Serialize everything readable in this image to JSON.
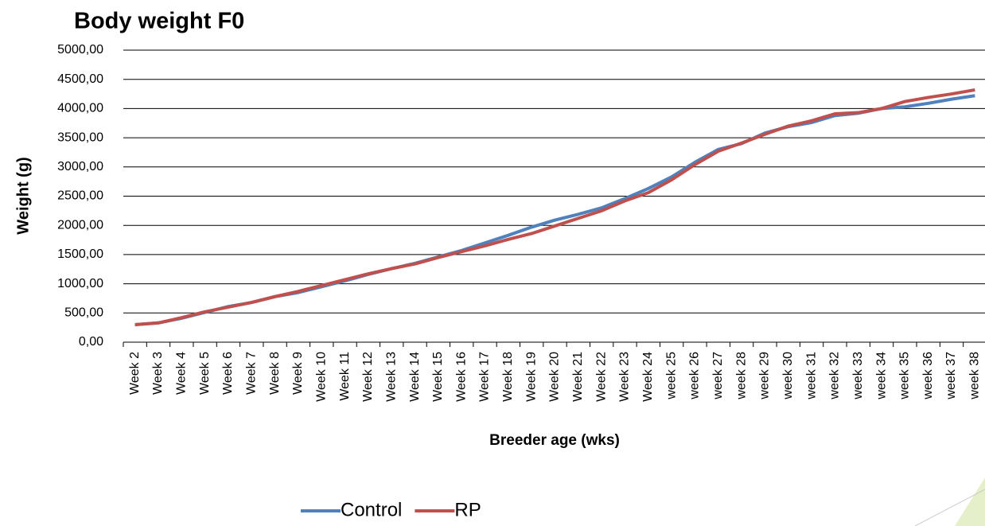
{
  "chart_data": {
    "type": "line",
    "title": "Body weight F0",
    "x_label": "Breeder age (wks)",
    "y_label": "Weight (g)",
    "categories": [
      "Week 2",
      "Week 3",
      "Week 4",
      "Week 5",
      "Week 6",
      "Week 7",
      "Week 8",
      "Week 9",
      "Week 10",
      "Week 11",
      "Week 12",
      "Week 13",
      "Week 14",
      "Week 15",
      "Week 16",
      "Week 17",
      "Week 18",
      "Week 19",
      "Week 20",
      "Week 21",
      "Week 22",
      "Week 23",
      "Week 24",
      "week 25",
      "week 26",
      "week 27",
      "week 28",
      "week 29",
      "week 30",
      "week 31",
      "week 32",
      "week 33",
      "week 34",
      "week 35",
      "week 36",
      "week 37",
      "week 38"
    ],
    "series": [
      {
        "name": "Control",
        "color": "#4f81bd",
        "values": [
          300,
          330,
          410,
          510,
          610,
          680,
          780,
          850,
          950,
          1050,
          1160,
          1260,
          1350,
          1460,
          1570,
          1700,
          1830,
          1970,
          2090,
          2190,
          2300,
          2460,
          2630,
          2830,
          3080,
          3300,
          3400,
          3580,
          3690,
          3760,
          3880,
          3920,
          4000,
          4030,
          4090,
          4160,
          4220
        ]
      },
      {
        "name": "RP",
        "color": "#c0504d",
        "values": [
          300,
          330,
          420,
          520,
          600,
          680,
          780,
          870,
          970,
          1070,
          1170,
          1260,
          1340,
          1450,
          1550,
          1650,
          1760,
          1860,
          1990,
          2120,
          2250,
          2420,
          2560,
          2780,
          3040,
          3270,
          3410,
          3560,
          3700,
          3790,
          3910,
          3930,
          4000,
          4120,
          4190,
          4250,
          4320
        ]
      }
    ],
    "ylim": [
      0,
      5000
    ],
    "yticks": [
      {
        "value": 0,
        "label": "0,00"
      },
      {
        "value": 500,
        "label": "500,00"
      },
      {
        "value": 1000,
        "label": "1000,00"
      },
      {
        "value": 1500,
        "label": "1500,00"
      },
      {
        "value": 2000,
        "label": "2000,00"
      },
      {
        "value": 2500,
        "label": "2500,00"
      },
      {
        "value": 3000,
        "label": "3000,00"
      },
      {
        "value": 3500,
        "label": "3500,00"
      },
      {
        "value": 4000,
        "label": "4000,00"
      },
      {
        "value": 4500,
        "label": "4500,00"
      },
      {
        "value": 5000,
        "label": "5000,00"
      }
    ],
    "grid": true,
    "legend": "bottom"
  }
}
